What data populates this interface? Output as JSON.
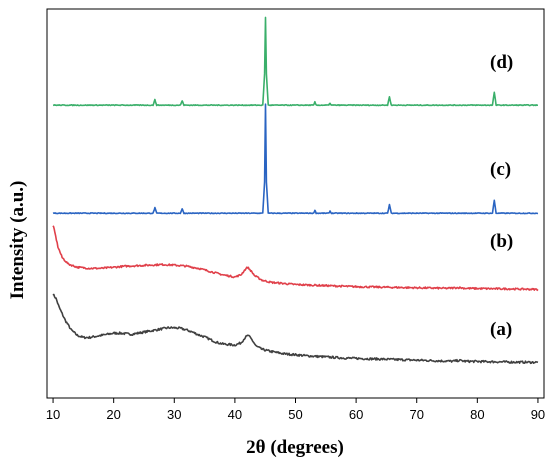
{
  "chart_data": {
    "type": "line",
    "xlabel": "2θ (degrees)",
    "ylabel": "Intensity (a.u.)",
    "xlim": [
      9,
      91
    ],
    "xticks": [
      10,
      20,
      30,
      40,
      50,
      60,
      70,
      80,
      90
    ],
    "y_ticks_shown": false,
    "y_units": "a.u. (offset stacked patterns)",
    "grid": false,
    "legend": "none",
    "series": [
      {
        "name": "(a)",
        "color": "#404040",
        "points": [
          [
            10,
            96
          ],
          [
            10.5,
            92
          ],
          [
            11,
            84
          ],
          [
            12,
            72
          ],
          [
            13,
            63
          ],
          [
            14,
            58
          ],
          [
            15,
            56
          ],
          [
            16,
            56
          ],
          [
            17,
            57
          ],
          [
            18,
            58
          ],
          [
            19,
            59
          ],
          [
            20,
            60
          ],
          [
            21,
            60
          ],
          [
            22,
            59.5
          ],
          [
            23,
            59
          ],
          [
            24,
            60
          ],
          [
            25,
            61
          ],
          [
            26,
            62
          ],
          [
            27,
            63
          ],
          [
            28,
            64
          ],
          [
            29,
            65
          ],
          [
            30,
            65
          ],
          [
            31,
            64.5
          ],
          [
            32,
            63
          ],
          [
            33,
            61
          ],
          [
            34,
            58.5
          ],
          [
            35,
            56.5
          ],
          [
            36,
            54
          ],
          [
            37,
            51.5
          ],
          [
            38,
            50
          ],
          [
            39,
            49.5
          ],
          [
            40,
            49
          ],
          [
            41,
            51
          ],
          [
            41.7,
            56
          ],
          [
            42.2,
            58
          ],
          [
            42.8,
            54
          ],
          [
            43.5,
            48
          ],
          [
            44.5,
            45
          ],
          [
            46,
            43
          ],
          [
            48,
            41
          ],
          [
            50,
            40
          ],
          [
            52,
            39
          ],
          [
            55,
            38
          ],
          [
            58,
            37
          ],
          [
            61,
            36.5
          ],
          [
            64,
            36
          ],
          [
            67,
            35.5
          ],
          [
            70,
            35
          ],
          [
            73,
            34.5
          ],
          [
            76,
            34
          ],
          [
            77,
            34.8
          ],
          [
            78,
            34
          ],
          [
            80,
            33.8
          ],
          [
            83,
            33.5
          ],
          [
            86,
            33.2
          ],
          [
            90,
            33
          ]
        ]
      },
      {
        "name": "(b)",
        "color": "#e0404a",
        "points": [
          [
            10,
            160
          ],
          [
            10.3,
            153
          ],
          [
            10.8,
            140
          ],
          [
            11.5,
            130
          ],
          [
            12.5,
            124
          ],
          [
            14,
            121
          ],
          [
            16,
            120
          ],
          [
            18,
            120
          ],
          [
            20,
            121
          ],
          [
            22,
            122
          ],
          [
            24,
            122.5
          ],
          [
            26,
            123
          ],
          [
            28,
            123.5
          ],
          [
            30,
            123
          ],
          [
            32,
            122
          ],
          [
            34,
            120
          ],
          [
            36,
            117
          ],
          [
            38,
            114
          ],
          [
            40,
            112
          ],
          [
            41,
            114
          ],
          [
            41.7,
            119
          ],
          [
            42.1,
            121
          ],
          [
            42.6,
            118
          ],
          [
            43.3,
            113
          ],
          [
            44.5,
            109
          ],
          [
            46,
            107
          ],
          [
            48,
            106
          ],
          [
            50,
            105
          ],
          [
            55,
            104
          ],
          [
            60,
            103
          ],
          [
            65,
            102.5
          ],
          [
            70,
            102
          ],
          [
            75,
            101.5
          ],
          [
            77,
            102.2
          ],
          [
            78,
            101.5
          ],
          [
            80,
            101.3
          ],
          [
            85,
            101
          ],
          [
            90,
            100.5
          ]
        ]
      },
      {
        "name": "(c)",
        "color": "#2a64c2",
        "points": [
          [
            10,
            171
          ],
          [
            26.5,
            171
          ],
          [
            26.8,
            176
          ],
          [
            27.1,
            171
          ],
          [
            31,
            171
          ],
          [
            31.3,
            175
          ],
          [
            31.6,
            171
          ],
          [
            44.6,
            171
          ],
          [
            44.9,
            200
          ],
          [
            45.05,
            272
          ],
          [
            45.2,
            200
          ],
          [
            45.5,
            171
          ],
          [
            53,
            171
          ],
          [
            53.2,
            174
          ],
          [
            53.4,
            171
          ],
          [
            55.5,
            171
          ],
          [
            55.7,
            173
          ],
          [
            55.9,
            171
          ],
          [
            65.2,
            171
          ],
          [
            65.5,
            179
          ],
          [
            65.8,
            171
          ],
          [
            82.5,
            171
          ],
          [
            82.8,
            183
          ],
          [
            83.1,
            171
          ],
          [
            90,
            171
          ]
        ]
      },
      {
        "name": "(d)",
        "color": "#3aaf6a",
        "points": [
          [
            10,
            271
          ],
          [
            26.5,
            271
          ],
          [
            26.8,
            276
          ],
          [
            27.1,
            271
          ],
          [
            31,
            271
          ],
          [
            31.3,
            275
          ],
          [
            31.6,
            271
          ],
          [
            44.6,
            271
          ],
          [
            44.9,
            300
          ],
          [
            45.05,
            352
          ],
          [
            45.2,
            300
          ],
          [
            45.5,
            271
          ],
          [
            53,
            271
          ],
          [
            53.2,
            274
          ],
          [
            53.4,
            271
          ],
          [
            55.5,
            271
          ],
          [
            55.7,
            273
          ],
          [
            55.9,
            271
          ],
          [
            65.2,
            271
          ],
          [
            65.5,
            279
          ],
          [
            65.8,
            271
          ],
          [
            82.5,
            271
          ],
          [
            82.8,
            283
          ],
          [
            83.1,
            271
          ],
          [
            90,
            271
          ]
        ]
      }
    ]
  }
}
